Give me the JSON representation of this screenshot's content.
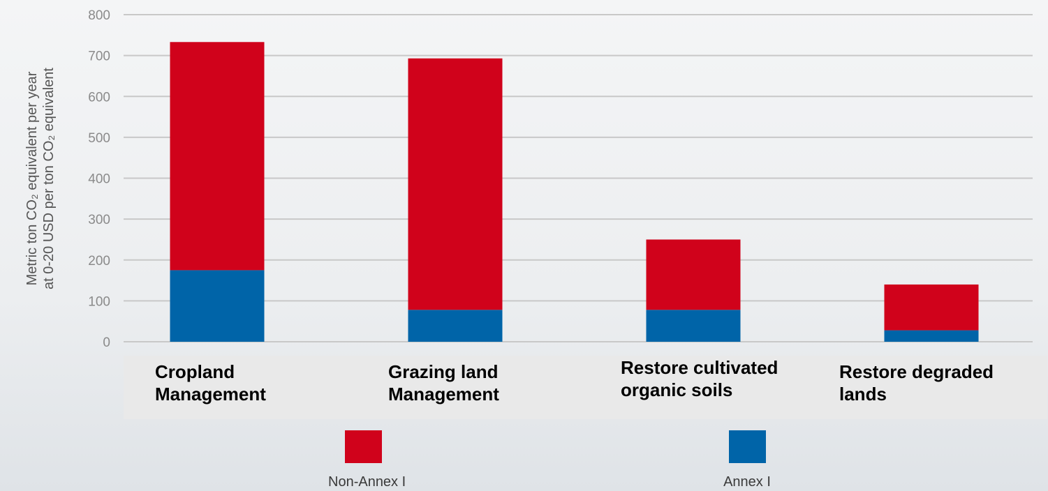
{
  "chart_data": {
    "type": "bar",
    "stacked": true,
    "categories": [
      "Cropland\nManagement",
      "Grazing land\nManagement",
      "Restore cultivated\norganic soils",
      "Restore degraded\nlands"
    ],
    "series": [
      {
        "name": "Annex I",
        "color": "#0064a8",
        "values": [
          175,
          78,
          78,
          28
        ]
      },
      {
        "name": "Non-Annex I",
        "color": "#d0021b",
        "values": [
          558,
          615,
          172,
          112
        ]
      }
    ],
    "ylabel_lines": [
      "Metric ton CO₂ equivalent per year",
      "at 0-20 USD per ton CO₂ equivalent"
    ],
    "yticks": [
      0,
      100,
      200,
      300,
      400,
      500,
      600,
      700,
      800
    ],
    "ylim": [
      0,
      800
    ],
    "grid": true,
    "legend_position": "bottom"
  },
  "legend": [
    {
      "label": "Non-Annex I",
      "color": "#d0021b"
    },
    {
      "label": "Annex I",
      "color": "#0064a8"
    }
  ]
}
